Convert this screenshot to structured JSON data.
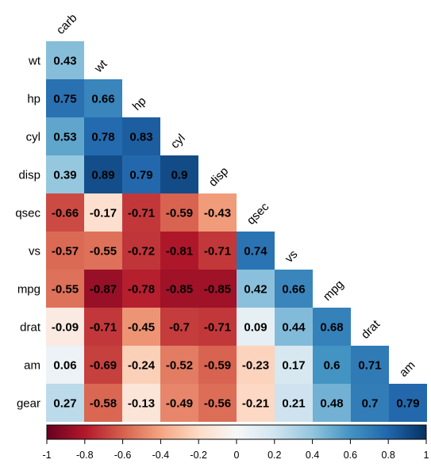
{
  "chart_data": {
    "type": "heatmap",
    "title": "",
    "row_labels": [
      "wt",
      "hp",
      "cyl",
      "disp",
      "qsec",
      "vs",
      "mpg",
      "drat",
      "am",
      "gear"
    ],
    "column_labels": [
      "carb",
      "wt",
      "hp",
      "cyl",
      "disp",
      "qsec",
      "vs",
      "mpg",
      "drat",
      "am"
    ],
    "values": [
      [
        "0.43"
      ],
      [
        "0.75",
        "0.66"
      ],
      [
        "0.53",
        "0.78",
        "0.83"
      ],
      [
        "0.39",
        "0.89",
        "0.79",
        "0.9"
      ],
      [
        "-0.66",
        "-0.17",
        "-0.71",
        "-0.59",
        "-0.43"
      ],
      [
        "-0.57",
        "-0.55",
        "-0.72",
        "-0.81",
        "-0.71",
        "0.74"
      ],
      [
        "-0.55",
        "-0.87",
        "-0.78",
        "-0.85",
        "-0.85",
        "0.42",
        "0.66"
      ],
      [
        "-0.09",
        "-0.71",
        "-0.45",
        "-0.7",
        "-0.71",
        "0.09",
        "0.44",
        "0.68"
      ],
      [
        "0.06",
        "-0.69",
        "-0.24",
        "-0.52",
        "-0.59",
        "-0.23",
        "0.17",
        "0.6",
        "0.71"
      ],
      [
        "0.27",
        "-0.58",
        "-0.13",
        "-0.49",
        "-0.56",
        "-0.21",
        "0.21",
        "0.48",
        "0.7",
        "0.79"
      ]
    ],
    "colorbar": {
      "range": [
        -1,
        1
      ],
      "tick_labels": [
        "-1",
        "-0.8",
        "-0.6",
        "-0.4",
        "-0.2",
        "0",
        "0.2",
        "0.4",
        "0.6",
        "0.8",
        "1"
      ],
      "colors": [
        "#67001f",
        "#b2182b",
        "#d6604d",
        "#f4a582",
        "#fddbc7",
        "#f7f7f7",
        "#d1e5f0",
        "#92c5de",
        "#4393c3",
        "#2166ac",
        "#053061"
      ]
    },
    "legend": "bottom",
    "grid": false
  }
}
